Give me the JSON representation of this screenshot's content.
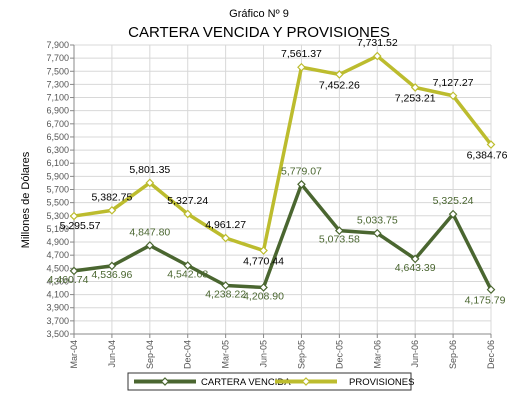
{
  "chart_data": {
    "type": "line",
    "title": "CARTERA VENCIDA Y PROVISIONES",
    "subtitle": "Gráfico Nº 9",
    "xlabel": "",
    "ylabel": "Millones de Dólares",
    "ylim": [
      3500,
      7900
    ],
    "ytick_step": 200,
    "yticks": [
      "3,500",
      "3,700",
      "3,900",
      "4,100",
      "4,300",
      "4,500",
      "4,700",
      "4,900",
      "5,100",
      "5,300",
      "5,500",
      "5,700",
      "5,900",
      "6,100",
      "6,300",
      "6,500",
      "6,700",
      "6,900",
      "7,100",
      "7,300",
      "7,500",
      "7,700",
      "7,900"
    ],
    "grid": true,
    "legend_position": "bottom",
    "categories": [
      "Mar-04",
      "Jun-04",
      "Sep-04",
      "Dec-04",
      "Mar-05",
      "Jun-05",
      "Sep-05",
      "Dec-05",
      "Mar-06",
      "Jun-06",
      "Sep-06",
      "Dec-06"
    ],
    "series": [
      {
        "name": "CARTERA VENCIDA",
        "color": "#4a6630",
        "label_color": "#4a6630",
        "values": [
          4460.74,
          4536.96,
          4847.8,
          4542.68,
          4238.22,
          4208.9,
          5779.07,
          5073.58,
          5033.75,
          4643.39,
          5325.24,
          4175.79
        ],
        "labels": [
          "4,460.74",
          "4,536.96",
          "4,847.80",
          "4,542.68",
          "4,238.22",
          "4,208.90",
          "5,779.07",
          "5,073.58",
          "5,033.75",
          "4,643.39",
          "5,325.24",
          "4,175.79"
        ]
      },
      {
        "name": "PROVISIONES",
        "color": "#bcbc2e",
        "label_color": "#000000",
        "values": [
          5295.57,
          5382.75,
          5801.35,
          5327.24,
          4961.27,
          4770.44,
          7561.37,
          7452.26,
          7731.52,
          7253.21,
          7127.27,
          6384.76
        ],
        "labels": [
          "5,295.57",
          "5,382.75",
          "5,801.35",
          "5,327.24",
          "4,961.27",
          "4,770.44",
          "7,561.37",
          "7,452.26",
          "7,731.52",
          "7,253.21",
          "7,127.27",
          "6,384.76"
        ]
      }
    ]
  }
}
